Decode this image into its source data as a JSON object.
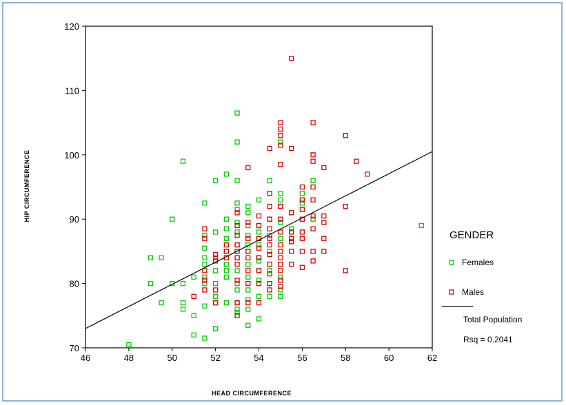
{
  "chart_data": {
    "type": "scatter",
    "xlabel": "HEAD CIRCUMFERENCE",
    "ylabel": "HIP CIRCUMFERENCE",
    "xlim": [
      46,
      62
    ],
    "ylim": [
      70,
      120
    ],
    "xticks": [
      "46",
      "48",
      "50",
      "52",
      "54",
      "56",
      "58",
      "60",
      "62"
    ],
    "yticks": [
      "70",
      "80",
      "90",
      "100",
      "110",
      "120"
    ],
    "grid": false,
    "legend": {
      "title": "GENDER",
      "placement": "right",
      "entries": [
        "Females",
        "Males",
        "Total Population",
        "Rsq = 0.2041"
      ]
    },
    "series": [
      {
        "name": "Females",
        "color": "#00cc00",
        "points": [
          [
            48,
            70.5
          ],
          [
            49,
            80
          ],
          [
            49,
            84
          ],
          [
            49.5,
            84
          ],
          [
            49.5,
            77
          ],
          [
            50,
            80
          ],
          [
            50,
            90
          ],
          [
            50.5,
            80
          ],
          [
            50.5,
            99
          ],
          [
            50.5,
            77
          ],
          [
            50.5,
            76
          ],
          [
            51,
            81
          ],
          [
            51,
            75
          ],
          [
            51,
            72
          ],
          [
            51.5,
            80
          ],
          [
            51.5,
            81
          ],
          [
            51.5,
            83
          ],
          [
            51.5,
            84
          ],
          [
            51.5,
            85.5
          ],
          [
            51.5,
            87.5
          ],
          [
            51.5,
            92.5
          ],
          [
            51.5,
            71.5
          ],
          [
            51.5,
            76.5
          ],
          [
            52,
            96
          ],
          [
            52,
            84
          ],
          [
            52,
            82
          ],
          [
            52,
            80
          ],
          [
            52,
            78
          ],
          [
            52,
            77
          ],
          [
            52,
            73
          ],
          [
            52,
            88
          ],
          [
            52.5,
            97
          ],
          [
            52.5,
            90
          ],
          [
            52.5,
            88.5
          ],
          [
            52.5,
            87
          ],
          [
            52.5,
            85
          ],
          [
            52.5,
            84
          ],
          [
            52.5,
            83
          ],
          [
            52.5,
            81
          ],
          [
            52.5,
            77
          ],
          [
            52.5,
            82
          ],
          [
            53,
            106.5
          ],
          [
            53,
            102
          ],
          [
            53,
            96
          ],
          [
            53,
            92.5
          ],
          [
            53,
            91.5
          ],
          [
            53,
            89.5
          ],
          [
            53,
            88
          ],
          [
            53,
            86
          ],
          [
            53,
            84
          ],
          [
            53,
            82
          ],
          [
            53,
            80
          ],
          [
            53,
            79
          ],
          [
            53,
            77
          ],
          [
            53,
            76
          ],
          [
            53,
            75.5
          ],
          [
            53.5,
            92
          ],
          [
            53.5,
            91
          ],
          [
            53.5,
            89
          ],
          [
            53.5,
            87.5
          ],
          [
            53.5,
            86
          ],
          [
            53.5,
            85
          ],
          [
            53.5,
            83
          ],
          [
            53.5,
            81
          ],
          [
            53.5,
            79
          ],
          [
            53.5,
            77.5
          ],
          [
            53.5,
            76
          ],
          [
            53.5,
            73.5
          ],
          [
            54,
            93
          ],
          [
            54,
            89
          ],
          [
            54,
            88
          ],
          [
            54,
            87
          ],
          [
            54,
            86
          ],
          [
            54,
            84
          ],
          [
            54,
            82
          ],
          [
            54,
            80.5
          ],
          [
            54,
            78
          ],
          [
            54,
            74.5
          ],
          [
            54,
            83.5
          ],
          [
            54.5,
            96
          ],
          [
            54.5,
            90
          ],
          [
            54.5,
            87.5
          ],
          [
            54.5,
            85
          ],
          [
            54.5,
            82
          ],
          [
            54.5,
            80
          ],
          [
            54.5,
            78
          ],
          [
            55,
            102
          ],
          [
            55,
            94
          ],
          [
            55,
            93
          ],
          [
            55,
            92
          ],
          [
            55,
            89.5
          ],
          [
            55,
            87
          ],
          [
            55,
            85
          ],
          [
            55,
            83
          ],
          [
            55,
            81
          ],
          [
            55,
            79
          ],
          [
            55,
            78
          ],
          [
            55.5,
            91
          ],
          [
            55.5,
            88.5
          ],
          [
            56,
            94
          ],
          [
            56,
            93
          ],
          [
            56,
            92.5
          ],
          [
            56.5,
            96
          ],
          [
            56.5,
            90
          ],
          [
            61.5,
            89
          ]
        ]
      },
      {
        "name": "Males",
        "color": "#e00000",
        "points": [
          [
            51,
            78
          ],
          [
            51.5,
            88.5
          ],
          [
            51.5,
            87
          ],
          [
            51.5,
            82
          ],
          [
            51.5,
            80.5
          ],
          [
            51.5,
            79
          ],
          [
            52,
            84.5
          ],
          [
            52,
            83.5
          ],
          [
            52,
            79
          ],
          [
            52,
            77
          ],
          [
            52.5,
            86
          ],
          [
            52.5,
            85
          ],
          [
            52.5,
            84
          ],
          [
            53,
            91
          ],
          [
            53,
            89
          ],
          [
            53,
            87.5
          ],
          [
            53,
            86
          ],
          [
            53,
            85
          ],
          [
            53,
            84
          ],
          [
            53,
            83
          ],
          [
            53,
            80.5
          ],
          [
            53,
            77
          ],
          [
            53,
            75
          ],
          [
            53.5,
            98
          ],
          [
            53.5,
            89.5
          ],
          [
            53.5,
            87
          ],
          [
            53.5,
            85
          ],
          [
            53.5,
            84
          ],
          [
            53.5,
            82
          ],
          [
            53.5,
            80
          ],
          [
            53.5,
            77
          ],
          [
            54,
            90.5
          ],
          [
            54,
            89
          ],
          [
            54,
            87
          ],
          [
            54,
            85.5
          ],
          [
            54,
            84
          ],
          [
            54,
            82
          ],
          [
            54,
            80
          ],
          [
            54,
            77
          ],
          [
            54.5,
            101
          ],
          [
            54.5,
            94
          ],
          [
            54.5,
            92
          ],
          [
            54.5,
            90
          ],
          [
            54.5,
            88.5
          ],
          [
            54.5,
            87
          ],
          [
            54.5,
            86
          ],
          [
            54.5,
            84.5
          ],
          [
            54.5,
            83
          ],
          [
            54.5,
            81.5
          ],
          [
            54.5,
            80
          ],
          [
            54.5,
            79
          ],
          [
            55,
            105
          ],
          [
            55,
            104
          ],
          [
            55,
            103
          ],
          [
            55,
            101.5
          ],
          [
            55,
            98.5
          ],
          [
            55,
            92
          ],
          [
            55,
            90
          ],
          [
            55,
            88
          ],
          [
            55,
            86
          ],
          [
            55,
            85
          ],
          [
            55,
            84
          ],
          [
            55,
            83
          ],
          [
            55,
            82
          ],
          [
            55,
            80.5
          ],
          [
            55,
            79.5
          ],
          [
            55.5,
            115
          ],
          [
            55.5,
            101
          ],
          [
            55.5,
            91
          ],
          [
            55.5,
            88
          ],
          [
            55.5,
            87
          ],
          [
            55.5,
            86.5
          ],
          [
            55.5,
            85
          ],
          [
            55.5,
            83
          ],
          [
            56,
            95
          ],
          [
            56,
            93
          ],
          [
            56,
            91.5
          ],
          [
            56,
            90
          ],
          [
            56,
            88
          ],
          [
            56,
            87
          ],
          [
            56,
            85
          ],
          [
            56,
            82.5
          ],
          [
            56.5,
            105
          ],
          [
            56.5,
            100
          ],
          [
            56.5,
            99
          ],
          [
            56.5,
            95
          ],
          [
            56.5,
            93
          ],
          [
            56.5,
            90.5
          ],
          [
            56.5,
            88.5
          ],
          [
            56.5,
            85
          ],
          [
            56.5,
            83.5
          ],
          [
            57,
            98
          ],
          [
            57,
            90.5
          ],
          [
            57,
            89.5
          ],
          [
            57,
            87
          ],
          [
            57,
            85
          ],
          [
            58,
            103
          ],
          [
            58,
            92
          ],
          [
            58,
            82
          ],
          [
            58.5,
            99
          ],
          [
            59,
            97
          ]
        ]
      }
    ],
    "fit_line": {
      "name": "Total Population",
      "rsq": 0.2041,
      "from": [
        46,
        73
      ],
      "to": [
        62,
        100.5
      ],
      "color": "#000000"
    }
  }
}
